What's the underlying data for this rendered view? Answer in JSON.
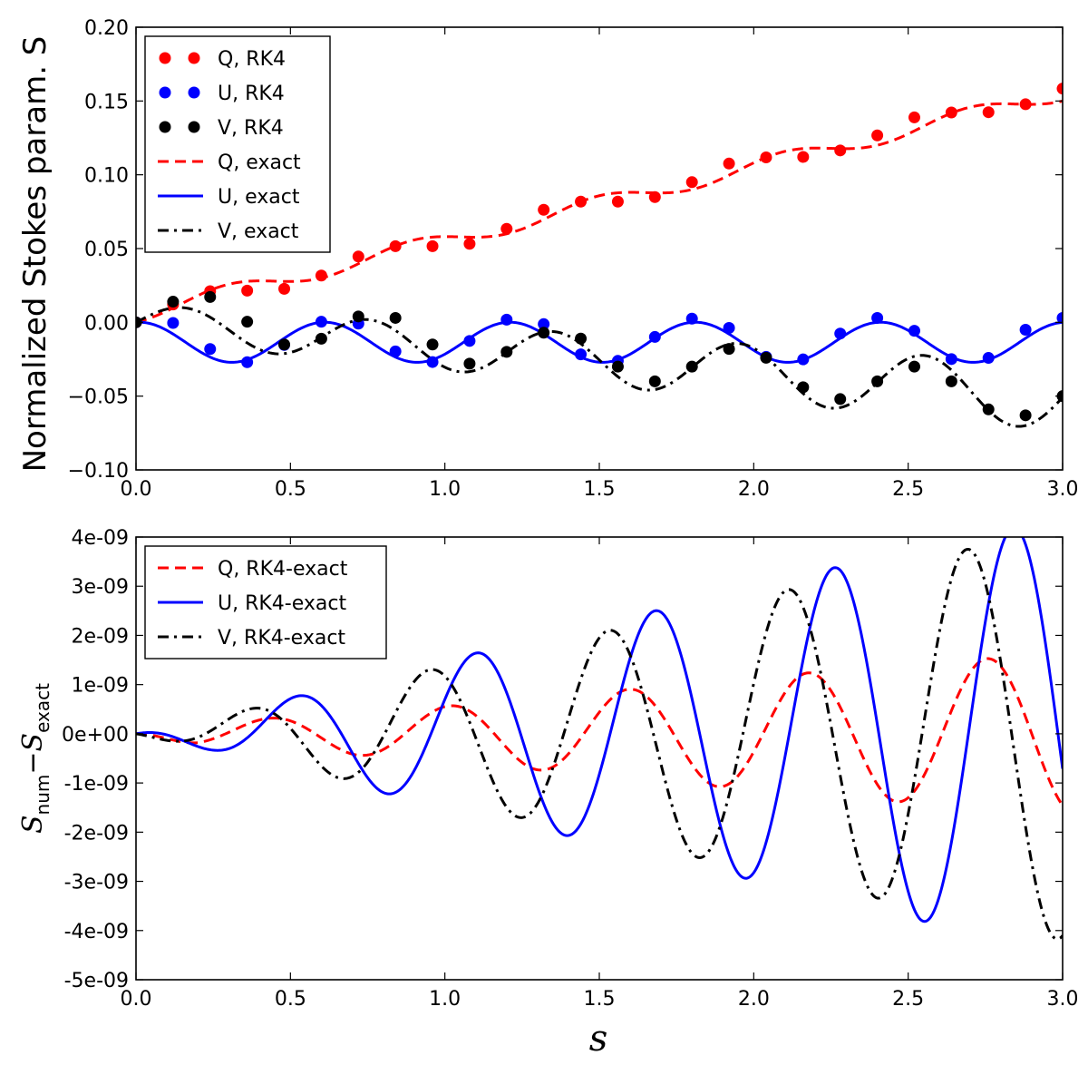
{
  "chart_data": [
    {
      "type": "line",
      "xlabel": "",
      "ylabel": "Normalized Stokes param. S",
      "ylabel_symbol": "S",
      "xlim": [
        0.0,
        3.0
      ],
      "ylim": [
        -0.1,
        0.2
      ],
      "xticks": [
        0.0,
        0.5,
        1.0,
        1.5,
        2.0,
        2.5,
        3.0
      ],
      "xtick_labels": [
        "0.0",
        "0.5",
        "1.0",
        "1.5",
        "2.0",
        "2.5",
        "3.0"
      ],
      "yticks": [
        -0.1,
        -0.05,
        0.0,
        0.05,
        0.1,
        0.15,
        0.2
      ],
      "ytick_labels": [
        "−0.10",
        "−0.05",
        "0.00",
        "0.05",
        "0.10",
        "0.15",
        "0.20"
      ],
      "legend_position": "top-left",
      "legend": [
        "Q, RK4",
        "U, RK4",
        "V, RK4",
        "Q, exact",
        "U, exact",
        "V, exact"
      ],
      "rk4_x": [
        0.0,
        0.12,
        0.24,
        0.36,
        0.48,
        0.6,
        0.72,
        0.84,
        0.96,
        1.08,
        1.2,
        1.32,
        1.44,
        1.56,
        1.68,
        1.8,
        1.92,
        2.04,
        2.16,
        2.28,
        2.4,
        2.52,
        2.64,
        2.76,
        2.88,
        3.0
      ],
      "series": [
        {
          "name": "Q, RK4",
          "style": "markers",
          "color": "#ff0000",
          "values": [
            0.0,
            0.0121,
            0.0211,
            0.0215,
            0.0227,
            0.0317,
            0.0446,
            0.0516,
            0.0516,
            0.0532,
            0.0634,
            0.0763,
            0.0818,
            0.0818,
            0.0849,
            0.095,
            0.1076,
            0.1118,
            0.1121,
            0.1165,
            0.1267,
            0.1389,
            0.1422,
            0.1424,
            0.1478,
            0.1584
          ]
        },
        {
          "name": "U, RK4",
          "style": "markers",
          "color": "#0000ff",
          "values": [
            0.0,
            -0.0004,
            -0.0181,
            -0.027,
            -0.0153,
            0.0004,
            -0.0009,
            -0.0197,
            -0.0269,
            -0.0126,
            0.0018,
            -0.0012,
            -0.0217,
            -0.0261,
            -0.0099,
            0.0025,
            -0.0038,
            -0.0234,
            -0.0251,
            -0.0076,
            0.003,
            -0.0057,
            -0.0249,
            -0.0241,
            -0.005,
            0.003
          ]
        },
        {
          "name": "V, RK4",
          "style": "markers",
          "color": "#000000",
          "values": [
            0.0,
            0.014,
            0.0172,
            0.0004,
            -0.015,
            -0.0111,
            0.004,
            0.003,
            -0.015,
            -0.028,
            -0.02,
            -0.007,
            -0.011,
            -0.03,
            -0.04,
            -0.03,
            -0.018,
            -0.024,
            -0.044,
            -0.052,
            -0.04,
            -0.03,
            -0.04,
            -0.059,
            -0.063,
            -0.05
          ]
        },
        {
          "name": "Q, exact",
          "style": "dashed",
          "color": "#ff0000",
          "formula": "0.05*s + 0.0054*sin(2*pi*s/0.6)",
          "dense_step": 0.005
        },
        {
          "name": "U, exact",
          "style": "solid",
          "color": "#0000ff",
          "formula": "-0.0135*(1-cos(2*pi*s/0.6)) + 0.0015*sin(2*pi*s/0.6)",
          "dense_step": 0.005
        },
        {
          "name": "V, exact",
          "style": "dashdot",
          "color": "#000000",
          "formula": "-0.017*s + 0.012*sin(2*pi*s/0.6) + 0.0035*sin(2*pi*s/0.6)*s",
          "dense_step": 0.005
        }
      ]
    },
    {
      "type": "line",
      "xlabel": "s",
      "ylabel": "S_num − S_exact",
      "ylabel_main": "S",
      "ylabel_sub_num": "num",
      "ylabel_minus": "−",
      "ylabel_sub_exact": "exact",
      "xlim": [
        0.0,
        3.0
      ],
      "ylim": [
        -5e-09,
        4e-09
      ],
      "xticks": [
        0.0,
        0.5,
        1.0,
        1.5,
        2.0,
        2.5,
        3.0
      ],
      "xtick_labels": [
        "0.0",
        "0.5",
        "1.0",
        "1.5",
        "2.0",
        "2.5",
        "3.0"
      ],
      "yticks": [
        -5e-09,
        -4e-09,
        -3e-09,
        -2e-09,
        -1e-09,
        0,
        1e-09,
        2e-09,
        3e-09,
        4e-09
      ],
      "ytick_labels": [
        "-5e-09",
        "-4e-09",
        "-3e-09",
        "-2e-09",
        "-1e-09",
        "0e+00",
        "1e-09",
        "2e-09",
        "3e-09",
        "4e-09"
      ],
      "legend_position": "top-left",
      "legend": [
        "Q, RK4-exact",
        "U, RK4-exact",
        "V, RK4-exact"
      ],
      "series": [
        {
          "name": "Q, RK4-exact",
          "style": "dashed",
          "color": "#ff0000",
          "period": 0.58,
          "phase": 0.435,
          "amp_peaks": [
            [
              0.0,
              0.0
            ],
            [
              0.2,
              2.2e-10
            ],
            [
              0.95,
              5.3e-10
            ],
            [
              1.5,
              8.5e-10
            ],
            [
              2.1,
              1.2e-09
            ],
            [
              2.7,
              1.5e-09
            ],
            [
              3.0,
              1.65e-09
            ]
          ]
        },
        {
          "name": "U, RK4-exact",
          "style": "solid",
          "color": "#0000ff",
          "period": 0.58,
          "phase": 0.52,
          "amp_peaks": [
            [
              0.0,
              0.0
            ],
            [
              0.25,
              3.4e-10
            ],
            [
              0.8,
              1.2e-09
            ],
            [
              1.38,
              2.05e-09
            ],
            [
              1.96,
              2.92e-09
            ],
            [
              2.54,
              3.8e-09
            ],
            [
              3.0,
              4.4e-09
            ]
          ]
        },
        {
          "name": "V, RK4-exact",
          "style": "dashdot",
          "color": "#000000",
          "period": 0.58,
          "phase": 0.37,
          "amp_peaks": [
            [
              0.0,
              0.0
            ],
            [
              0.38,
              5.2e-10
            ],
            [
              0.95,
              1.3e-09
            ],
            [
              1.53,
              2.1e-09
            ],
            [
              2.11,
              2.93e-09
            ],
            [
              2.69,
              3.75e-09
            ],
            [
              3.0,
              4.2e-09
            ]
          ]
        }
      ]
    }
  ]
}
